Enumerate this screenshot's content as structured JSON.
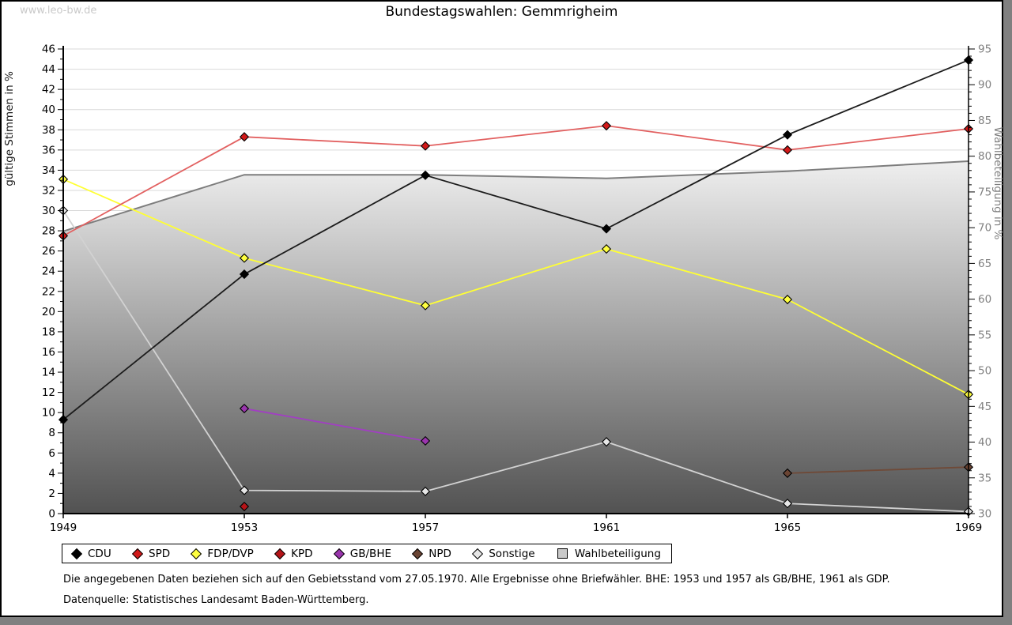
{
  "page": {
    "watermark": "www.leo-bw.de",
    "title": "Bundestagswahlen: Gemmrigheim",
    "footnote": "Die angegebenen Daten beziehen sich auf den Gebietsstand vom 27.05.1970. Alle Ergebnisse ohne Briefwähler. BHE: 1953 und 1957 als GB/BHE, 1961 als GDP.",
    "source": "Datenquelle: Statistisches Landesamt Baden-Württemberg."
  },
  "colors": {
    "grid": "#d9d9d9",
    "axis": "#000000",
    "right_axis_text": "#7f7f7f",
    "area_top": "#efefef",
    "area_bottom": "#525252",
    "watermark": "#c9c9c9",
    "page_border": "#000000",
    "outer_edge": "#808080"
  },
  "chart_data": {
    "type": "line",
    "title": "Bundestagswahlen: Gemmrigheim",
    "x_categories": [
      "1949",
      "1953",
      "1957",
      "1961",
      "1965",
      "1969"
    ],
    "left_axis": {
      "label": "gültige Stimmen in %",
      "min": 0,
      "max": 46,
      "major_step": 2,
      "minor_step": 1
    },
    "right_axis": {
      "label": "Wahlbeteiligung in %",
      "min": 30,
      "max": 95,
      "major_step": 5,
      "minor_step": 1
    },
    "grid": true,
    "legend_position": "bottom",
    "series": [
      {
        "name": "CDU",
        "axis": "left",
        "marker": "diamond",
        "color": "#000000",
        "line_color": "#1c1c1c",
        "values": [
          9.3,
          23.7,
          33.5,
          28.2,
          37.5,
          44.9
        ]
      },
      {
        "name": "SPD",
        "axis": "left",
        "marker": "diamond",
        "color": "#d11919",
        "line_color": "#e26060",
        "values": [
          27.5,
          37.3,
          36.4,
          38.4,
          36.0,
          38.1
        ]
      },
      {
        "name": "FDP/DVP",
        "axis": "left",
        "marker": "diamond",
        "color": "#ffff40",
        "line_color": "#ffff33",
        "values": [
          33.1,
          25.3,
          20.6,
          26.2,
          21.2,
          11.8
        ]
      },
      {
        "name": "KPD",
        "axis": "left",
        "marker": "diamond",
        "color": "#b51418",
        "line_color": "#c24444",
        "values": [
          null,
          0.7,
          null,
          null,
          null,
          null
        ]
      },
      {
        "name": "GB/BHE",
        "axis": "left",
        "marker": "diamond",
        "color": "#9a35ad",
        "line_color": "#a13fc2",
        "values": [
          null,
          10.4,
          7.2,
          null,
          null,
          null
        ]
      },
      {
        "name": "NPD",
        "axis": "left",
        "marker": "diamond",
        "color": "#6a4433",
        "line_color": "#6f4a38",
        "values": [
          null,
          null,
          null,
          null,
          4.0,
          4.6
        ]
      },
      {
        "name": "Sonstige",
        "axis": "left",
        "marker": "diamond",
        "color": "#e6e6e6",
        "line_color": "#d2d2d2",
        "values": [
          30.0,
          2.3,
          2.2,
          7.1,
          1.0,
          0.2
        ]
      },
      {
        "name": "Wahlbeteiligung",
        "axis": "right",
        "marker": "square",
        "area": true,
        "color": "#c9c9c9",
        "line_color": "#7d7d7d",
        "values": [
          69.5,
          77.4,
          77.4,
          76.9,
          77.9,
          79.3
        ]
      }
    ]
  }
}
